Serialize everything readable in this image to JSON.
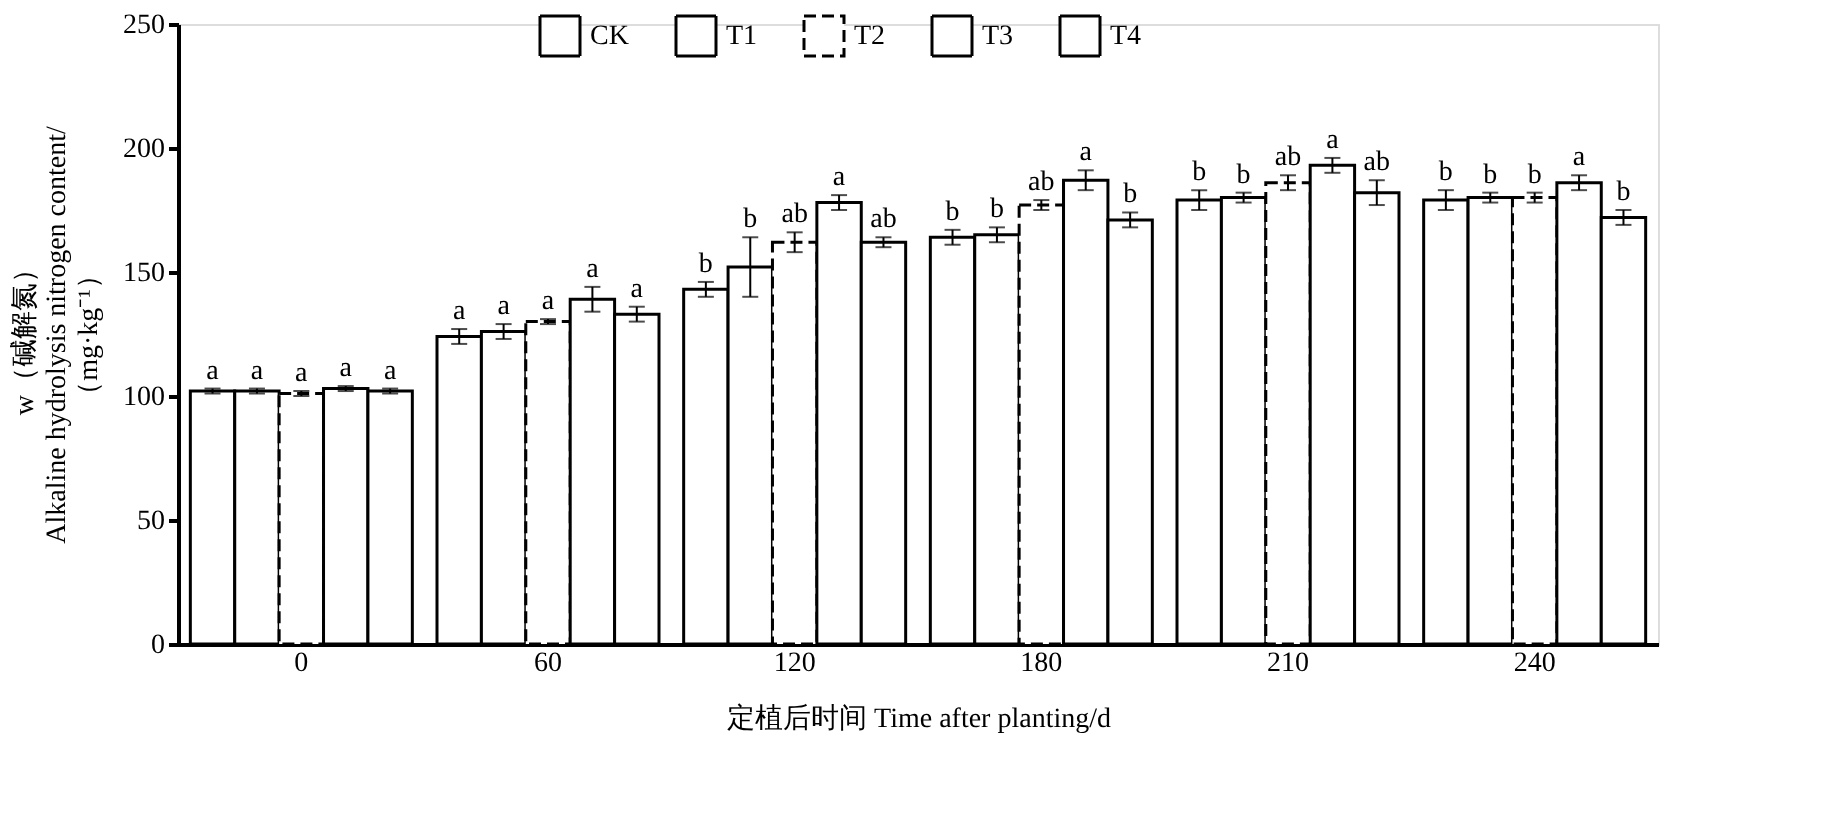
{
  "chart_data": {
    "type": "bar",
    "xlabel": "定植后时间 Time after planting/d",
    "ylabel": "w（碱解氮）\nAlkaline hydrolysis nitrogen content/\n（mg·kg⁻¹）",
    "categories": [
      "0",
      "60",
      "120",
      "180",
      "210",
      "240"
    ],
    "series": [
      {
        "name": "CK",
        "color": "#ffffff",
        "line_style": "solid",
        "values": [
          102,
          124,
          143,
          164,
          179,
          179
        ],
        "errors": [
          1,
          3,
          3,
          3,
          4,
          4
        ],
        "value_labels": [
          "a",
          "a",
          "b",
          "b",
          "b",
          "b"
        ]
      },
      {
        "name": "T1",
        "color": "#ffffff",
        "line_style": "solid",
        "values": [
          102,
          126,
          152,
          165,
          180,
          180
        ],
        "errors": [
          1,
          3,
          12,
          3,
          2,
          2
        ],
        "value_labels": [
          "a",
          "a",
          "b",
          "b",
          "b",
          "b"
        ]
      },
      {
        "name": "T2",
        "color": "#ffffff",
        "line_style": "dashed",
        "values": [
          101,
          130,
          162,
          177,
          186,
          180
        ],
        "errors": [
          1,
          1,
          4,
          2,
          3,
          2
        ],
        "value_labels": [
          "a",
          "a",
          "ab",
          "ab",
          "ab",
          "b"
        ]
      },
      {
        "name": "T3",
        "color": "#ffffff",
        "line_style": "solid",
        "values": [
          103,
          139,
          178,
          187,
          193,
          186
        ],
        "errors": [
          1,
          5,
          3,
          4,
          3,
          3
        ],
        "value_labels": [
          "a",
          "a",
          "a",
          "a",
          "a",
          "a"
        ]
      },
      {
        "name": "T4",
        "color": "#ffffff",
        "line_style": "solid",
        "values": [
          102,
          133,
          162,
          171,
          182,
          172
        ],
        "errors": [
          1,
          3,
          2,
          3,
          5,
          3
        ],
        "value_labels": [
          "a",
          "a",
          "ab",
          "b",
          "ab",
          "b"
        ]
      }
    ],
    "ylim": [
      0,
      250
    ],
    "yticks": [
      0,
      50,
      100,
      150,
      200,
      250
    ],
    "grid": false,
    "legend": "top"
  }
}
